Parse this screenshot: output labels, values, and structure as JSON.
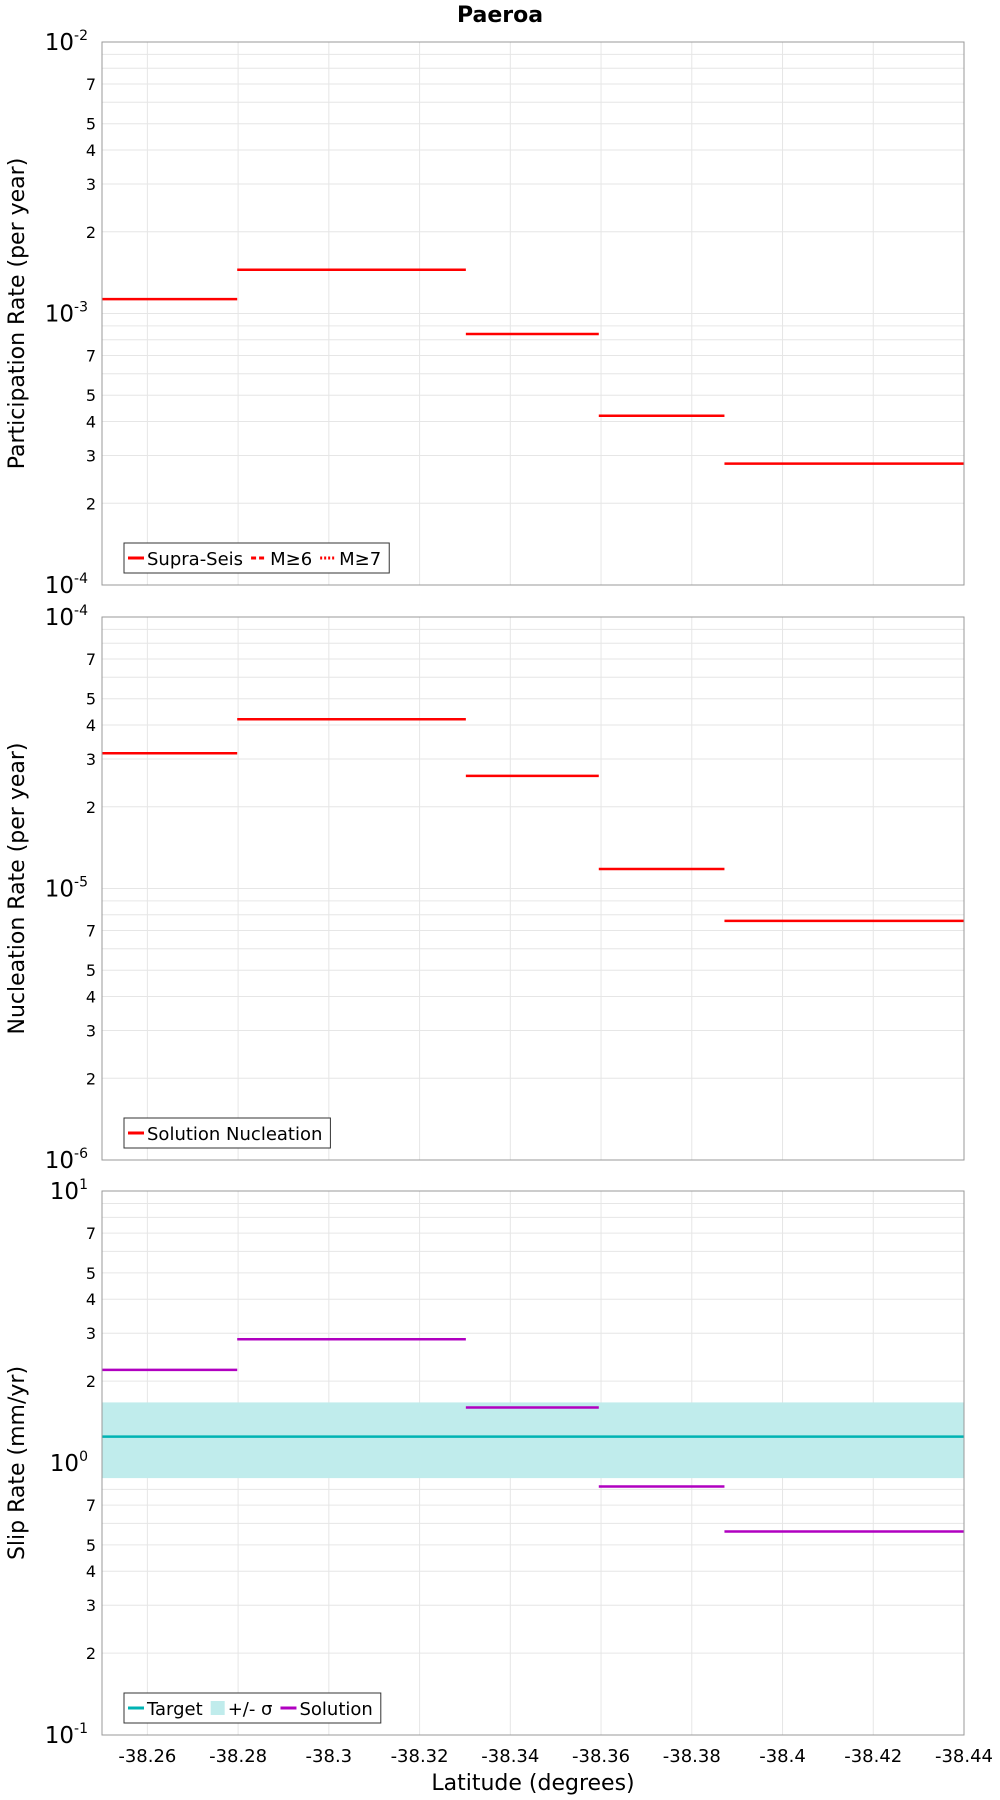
{
  "title": "Paeroa",
  "chart_data": [
    {
      "type": "line",
      "ylabel": "Participation Rate (per year)",
      "xlabel": "Latitude (degrees)",
      "yscale": "log",
      "ylim": [
        0.0001,
        0.01
      ],
      "y_major_ticks": [
        {
          "base": "10",
          "exp": "-2",
          "value": 0.01
        },
        {
          "base": "10",
          "exp": "-3",
          "value": 0.001
        },
        {
          "base": "10",
          "exp": "-4",
          "value": 0.0001
        }
      ],
      "xlim": [
        -38.25,
        -38.44
      ],
      "legend": {
        "placement": "bottom-left",
        "entries": [
          {
            "label": "Supra-Seis",
            "color": "#ff0000",
            "style": "solid"
          },
          {
            "label": "M≥6",
            "color": "#ff0000",
            "style": "dashed"
          },
          {
            "label": "M≥7",
            "color": "#ff0000",
            "style": "dotted"
          }
        ]
      },
      "series": [
        {
          "color": "#ff0000",
          "segments": [
            {
              "x": [
                -38.25,
                -38.2798
              ],
              "y": 0.00113
            },
            {
              "x": [
                -38.2798,
                -38.3302
              ],
              "y": 0.00145
            },
            {
              "x": [
                -38.3302,
                -38.3595
              ],
              "y": 0.00084
            },
            {
              "x": [
                -38.3595,
                -38.3872
              ],
              "y": 0.00042
            },
            {
              "x": [
                -38.3872,
                -38.413
              ],
              "y": 0.00028
            },
            {
              "x": [
                -38.413,
                -38.44
              ],
              "y": 0.00028
            }
          ]
        }
      ]
    },
    {
      "type": "line",
      "ylabel": "Nucleation Rate (per year)",
      "yscale": "log",
      "ylim": [
        1e-06,
        0.0001
      ],
      "y_major_ticks": [
        {
          "base": "10",
          "exp": "-4",
          "value": 0.0001
        },
        {
          "base": "10",
          "exp": "-5",
          "value": 1e-05
        },
        {
          "base": "10",
          "exp": "-6",
          "value": 1e-06
        }
      ],
      "xlim": [
        -38.25,
        -38.44
      ],
      "legend": {
        "placement": "bottom-left",
        "entries": [
          {
            "label": "Solution Nucleation",
            "color": "#ff0000",
            "style": "solid"
          }
        ]
      },
      "series": [
        {
          "color": "#ff0000",
          "segments": [
            {
              "x": [
                -38.25,
                -38.2798
              ],
              "y": 3.15e-05
            },
            {
              "x": [
                -38.2798,
                -38.3302
              ],
              "y": 4.2e-05
            },
            {
              "x": [
                -38.3302,
                -38.3595
              ],
              "y": 2.6e-05
            },
            {
              "x": [
                -38.3595,
                -38.3872
              ],
              "y": 1.18e-05
            },
            {
              "x": [
                -38.3872,
                -38.413
              ],
              "y": 7.6e-06
            },
            {
              "x": [
                -38.413,
                -38.44
              ],
              "y": 7.6e-06
            }
          ]
        }
      ]
    },
    {
      "type": "line",
      "ylabel": "Slip Rate (mm/yr)",
      "xlabel": "Latitude (degrees)",
      "yscale": "log",
      "ylim": [
        0.1,
        10
      ],
      "y_major_ticks": [
        {
          "base": "10",
          "exp": "1",
          "value": 10
        },
        {
          "base": "10",
          "exp": "0",
          "value": 1
        },
        {
          "base": "10",
          "exp": "-1",
          "value": 0.1
        }
      ],
      "xlim": [
        -38.25,
        -38.44
      ],
      "x_ticks": [
        -38.26,
        -38.28,
        -38.3,
        -38.32,
        -38.34,
        -38.36,
        -38.38,
        -38.4,
        -38.42,
        -38.44
      ],
      "x_tick_labels": [
        "-38.26",
        "-38.28",
        "-38.3",
        "-38.32",
        "-38.34",
        "-38.36",
        "-38.38",
        "-38.4",
        "-38.42",
        "-38.44"
      ],
      "legend": {
        "placement": "bottom-left",
        "entries": [
          {
            "label": "Target",
            "color": "#00b3b3",
            "style": "solid"
          },
          {
            "label": "+/- σ",
            "color": "#c0ecec",
            "style": "band"
          },
          {
            "label": "Solution",
            "color": "#b000c0",
            "style": "solid"
          }
        ]
      },
      "band": {
        "color": "#c0ecec",
        "low": 0.88,
        "high": 1.67
      },
      "target": {
        "color": "#00b3b3",
        "value": 1.25
      },
      "series": [
        {
          "color": "#b000c0",
          "segments": [
            {
              "x": [
                -38.25,
                -38.2798
              ],
              "y": 2.2
            },
            {
              "x": [
                -38.2798,
                -38.3302
              ],
              "y": 2.85
            },
            {
              "x": [
                -38.3302,
                -38.3595
              ],
              "y": 1.6
            },
            {
              "x": [
                -38.3595,
                -38.3872
              ],
              "y": 0.82
            },
            {
              "x": [
                -38.3872,
                -38.413
              ],
              "y": 0.56
            },
            {
              "x": [
                -38.413,
                -38.44
              ],
              "y": 0.56
            }
          ]
        }
      ]
    }
  ]
}
